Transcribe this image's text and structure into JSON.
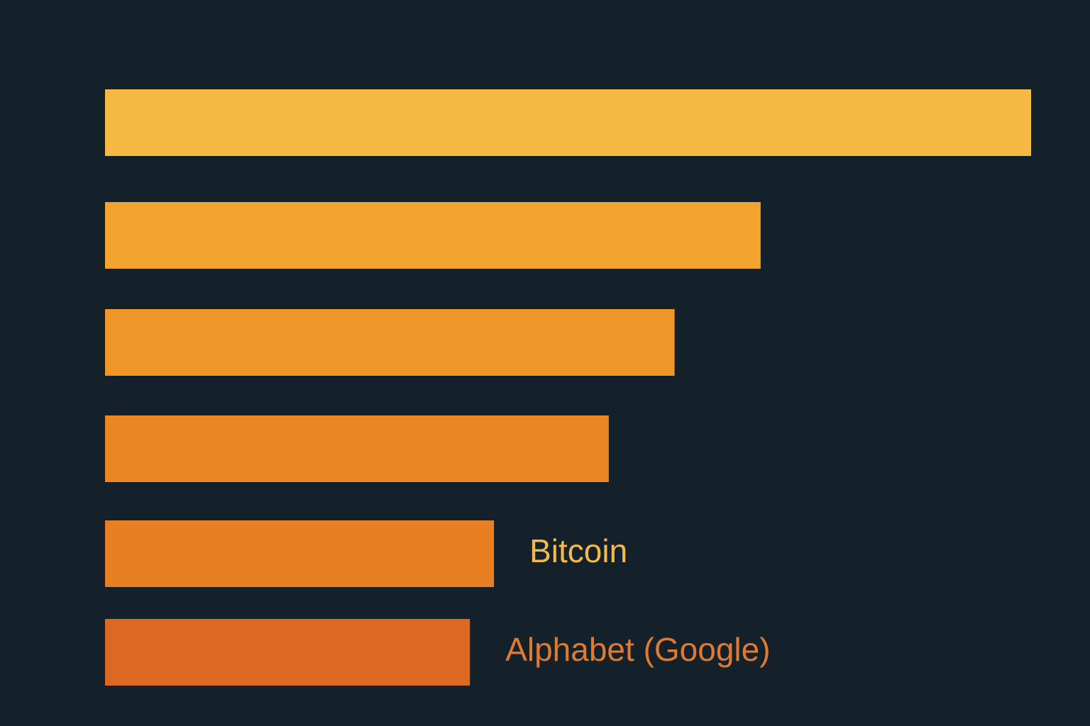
{
  "chart_data": {
    "type": "bar",
    "orientation": "horizontal",
    "title": "",
    "xlabel": "",
    "ylabel": "",
    "grid": false,
    "legend": "none",
    "axes_visible": false,
    "xlim": [
      0,
      100
    ],
    "categories": [
      "",
      "",
      "",
      "",
      "Bitcoin",
      "Alphabet (Google)"
    ],
    "values": [
      100,
      70.8,
      61.5,
      54.4,
      42.0,
      39.4
    ],
    "colors": [
      "#f6b944",
      "#f3a42f",
      "#ef9628",
      "#ea8624",
      "#e87f22",
      "#dc6922"
    ],
    "label_colors": [
      "",
      "",
      "",
      "",
      "#f3b94a",
      "#e07a30"
    ]
  }
}
